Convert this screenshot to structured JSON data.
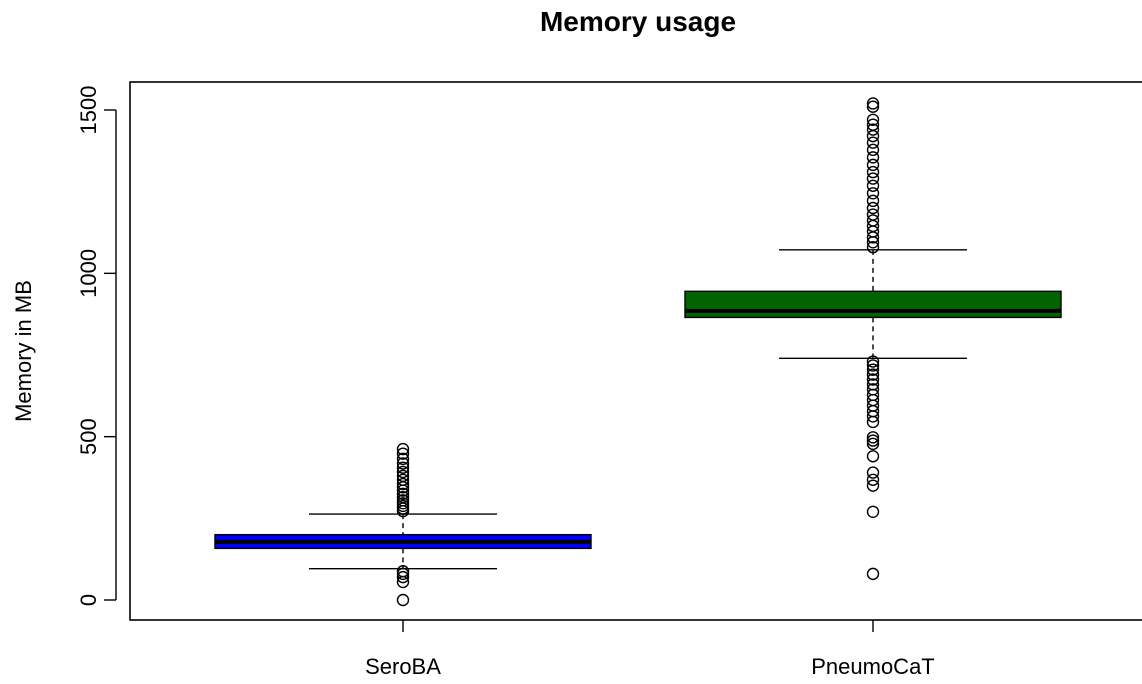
{
  "chart_data": {
    "type": "box",
    "title": "Memory usage",
    "xlabel": "",
    "ylabel": "Memory in MB",
    "ylim": [
      -60,
      1580
    ],
    "yticks": [
      0,
      500,
      1000,
      1500
    ],
    "ytick_labels": [
      "0",
      "500",
      "1000",
      "1500"
    ],
    "categories": [
      "SeroBA",
      "PneumoCaT"
    ],
    "boxes": [
      {
        "name": "SeroBA",
        "color": "#0000ff",
        "whisker_low": 96,
        "q1": 158,
        "median": 178,
        "q3": 200,
        "whisker_high": 263,
        "outliers": [
          0,
          55,
          70,
          80,
          88,
          272,
          280,
          288,
          296,
          305,
          315,
          325,
          335,
          345,
          355,
          368,
          380,
          392,
          405,
          418,
          432,
          448,
          462
        ]
      },
      {
        "name": "PneumoCaT",
        "color": "#006400",
        "whisker_low": 740,
        "q1": 865,
        "median": 885,
        "q3": 945,
        "whisker_high": 1072,
        "outliers": [
          80,
          270,
          350,
          368,
          390,
          440,
          478,
          488,
          498,
          545,
          562,
          578,
          595,
          612,
          628,
          645,
          660,
          675,
          690,
          705,
          718,
          730,
          1080,
          1095,
          1110,
          1128,
          1145,
          1162,
          1180,
          1200,
          1222,
          1245,
          1268,
          1290,
          1310,
          1332,
          1355,
          1378,
          1400,
          1420,
          1440,
          1455,
          1470,
          1510,
          1520
        ]
      }
    ],
    "grid": false,
    "legend": "none"
  }
}
